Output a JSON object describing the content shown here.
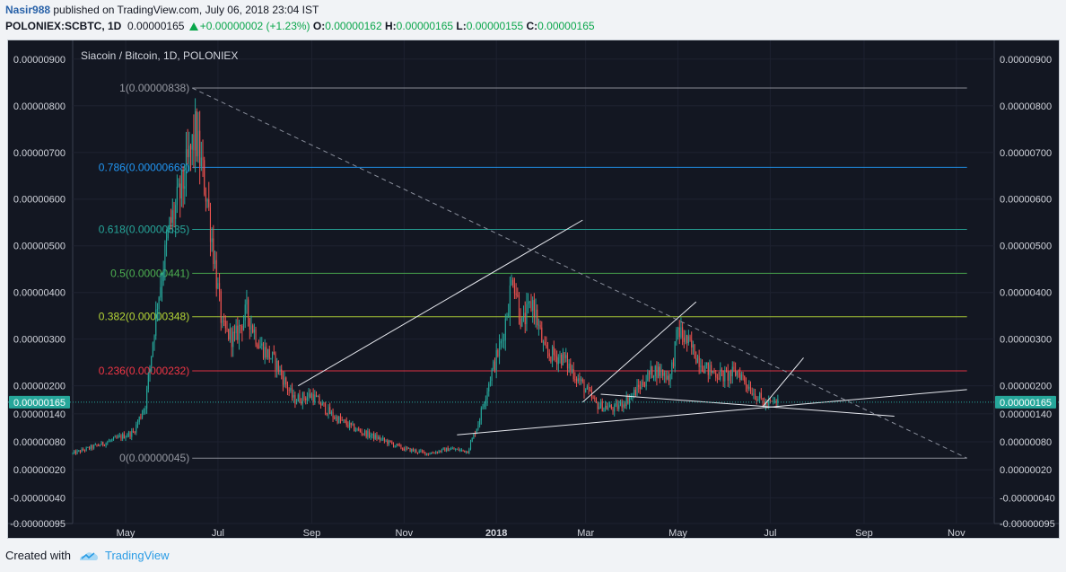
{
  "header": {
    "author": "Nasir988",
    "published_text": " published on TradingView.com, July 06, 2018 23:04 IST",
    "symbol": "POLONIEX:SCBTC, 1D",
    "last": "0.00000165",
    "change": "+0.00000002 (+1.23%)",
    "open_label": "O:",
    "open": "0.00000162",
    "high_label": "H:",
    "high": "0.00000165",
    "low_label": "L:",
    "low": "0.00000155",
    "close_label": "C:",
    "close": "0.00000165"
  },
  "footer": {
    "created_with": "Created with",
    "brand": "TradingView"
  },
  "colors": {
    "background": "#131722",
    "up": "#26a69a",
    "down": "#ef5350",
    "price_line": "#26a69a",
    "accent": "#2a9ce5"
  },
  "chart_data": {
    "type": "candlestick",
    "title": "Siacoin / Bitcoin, 1D, POLONIEX",
    "current_price": 1.65e-06,
    "current_price_label": "0.00000165",
    "y_range": [
      -9.5e-07,
      9.4e-06
    ],
    "x_range": [
      "2017-03-27",
      "2018-11-26"
    ],
    "x_ticks": [
      {
        "label": "May",
        "date": "2017-05-01"
      },
      {
        "label": "Jul",
        "date": "2017-07-01"
      },
      {
        "label": "Sep",
        "date": "2017-09-01"
      },
      {
        "label": "Nov",
        "date": "2017-11-01"
      },
      {
        "label": "2018",
        "date": "2018-01-01"
      },
      {
        "label": "Mar",
        "date": "2018-03-01"
      },
      {
        "label": "May",
        "date": "2018-05-01"
      },
      {
        "label": "Jul",
        "date": "2018-07-01"
      },
      {
        "label": "Sep",
        "date": "2018-09-01"
      },
      {
        "label": "Nov",
        "date": "2018-11-01"
      }
    ],
    "y_ticks": [
      {
        "label": "0.00000900",
        "value": 9e-06
      },
      {
        "label": "0.00000800",
        "value": 8e-06
      },
      {
        "label": "0.00000700",
        "value": 7e-06
      },
      {
        "label": "0.00000600",
        "value": 6e-06
      },
      {
        "label": "0.00000500",
        "value": 5e-06
      },
      {
        "label": "0.00000400",
        "value": 4e-06
      },
      {
        "label": "0.00000300",
        "value": 3e-06
      },
      {
        "label": "0.00000200",
        "value": 2e-06
      },
      {
        "label": "0.00000140",
        "value": 1.4e-06
      },
      {
        "label": "0.00000080",
        "value": 8e-07
      },
      {
        "label": "0.00000020",
        "value": 2e-07
      },
      {
        "label": "-0.00000040",
        "value": -4e-07
      },
      {
        "label": "-0.00000095",
        "value": -9.5e-07
      }
    ],
    "fib_levels": [
      {
        "label": "1(0.00000838)",
        "value": 8.38e-06,
        "color": "#9598a1"
      },
      {
        "label": "0.786(0.00000668)",
        "value": 6.68e-06,
        "color": "#2196f3"
      },
      {
        "label": "0.618(0.00000535)",
        "value": 5.35e-06,
        "color": "#26a69a"
      },
      {
        "label": "0.5(0.00000441)",
        "value": 4.41e-06,
        "color": "#4caf50"
      },
      {
        "label": "0.382(0.00000348)",
        "value": 3.48e-06,
        "color": "#b6d736"
      },
      {
        "label": "0.236(0.00000232)",
        "value": 2.32e-06,
        "color": "#f23645"
      },
      {
        "label": "0(0.00000045)",
        "value": 4.5e-07,
        "color": "#9598a1"
      }
    ],
    "trendlines": [
      {
        "name": "descending-dashed",
        "style": "dashed",
        "start": {
          "date": "2017-06-14",
          "value": 8.38e-06
        },
        "end": {
          "date": "2018-11-08",
          "value": 4.5e-07
        }
      },
      {
        "name": "channel-upper-2017",
        "style": "solid",
        "start": {
          "date": "2017-08-23",
          "value": 2e-06
        },
        "end": {
          "date": "2018-02-27",
          "value": 5.55e-06
        }
      },
      {
        "name": "channel-upper-2018",
        "style": "solid",
        "start": {
          "date": "2018-02-27",
          "value": 1.65e-06
        },
        "end": {
          "date": "2018-05-13",
          "value": 3.8e-06
        }
      },
      {
        "name": "breakout-line",
        "style": "solid",
        "start": {
          "date": "2018-06-26",
          "value": 1.55e-06
        },
        "end": {
          "date": "2018-07-23",
          "value": 2.6e-06
        }
      },
      {
        "name": "support-rising",
        "style": "solid",
        "start": {
          "date": "2017-12-06",
          "value": 9.5e-07
        },
        "end": {
          "date": "2018-11-08",
          "value": 1.92e-06
        }
      },
      {
        "name": "resistance-falling",
        "style": "solid",
        "start": {
          "date": "2018-03-11",
          "value": 1.82e-06
        },
        "end": {
          "date": "2018-09-21",
          "value": 1.35e-06
        }
      }
    ],
    "price_path": [
      {
        "date": "2017-03-27",
        "value": 5.5e-07
      },
      {
        "date": "2017-04-15",
        "value": 7.5e-07
      },
      {
        "date": "2017-05-06",
        "value": 1e-06
      },
      {
        "date": "2017-05-14",
        "value": 1.6e-06
      },
      {
        "date": "2017-05-22",
        "value": 3.8e-06
      },
      {
        "date": "2017-05-30",
        "value": 5.4e-06
      },
      {
        "date": "2017-06-07",
        "value": 6.2e-06
      },
      {
        "date": "2017-06-16",
        "value": 7.4e-06
      },
      {
        "date": "2017-06-24",
        "value": 6e-06
      },
      {
        "date": "2017-07-04",
        "value": 3.2e-06
      },
      {
        "date": "2017-07-12",
        "value": 3e-06
      },
      {
        "date": "2017-07-20",
        "value": 3.6e-06
      },
      {
        "date": "2017-07-28",
        "value": 2.9e-06
      },
      {
        "date": "2017-08-08",
        "value": 2.5e-06
      },
      {
        "date": "2017-08-20",
        "value": 1.7e-06
      },
      {
        "date": "2017-09-01",
        "value": 1.8e-06
      },
      {
        "date": "2017-09-15",
        "value": 1.35e-06
      },
      {
        "date": "2017-10-01",
        "value": 1.05e-06
      },
      {
        "date": "2017-10-17",
        "value": 8.5e-07
      },
      {
        "date": "2017-11-01",
        "value": 6.5e-07
      },
      {
        "date": "2017-11-17",
        "value": 5.5e-07
      },
      {
        "date": "2017-12-01",
        "value": 6.5e-07
      },
      {
        "date": "2017-12-13",
        "value": 6e-07
      },
      {
        "date": "2017-12-20",
        "value": 1.2e-06
      },
      {
        "date": "2017-12-28",
        "value": 2.2e-06
      },
      {
        "date": "2018-01-05",
        "value": 3e-06
      },
      {
        "date": "2018-01-12",
        "value": 4.4e-06
      },
      {
        "date": "2018-01-18",
        "value": 3.3e-06
      },
      {
        "date": "2018-01-25",
        "value": 3.8e-06
      },
      {
        "date": "2018-02-02",
        "value": 2.7e-06
      },
      {
        "date": "2018-02-14",
        "value": 2.6e-06
      },
      {
        "date": "2018-02-25",
        "value": 2.1e-06
      },
      {
        "date": "2018-03-08",
        "value": 1.6e-06
      },
      {
        "date": "2018-03-20",
        "value": 1.5e-06
      },
      {
        "date": "2018-04-01",
        "value": 1.8e-06
      },
      {
        "date": "2018-04-15",
        "value": 2.35e-06
      },
      {
        "date": "2018-04-26",
        "value": 2.2e-06
      },
      {
        "date": "2018-05-01",
        "value": 3.2e-06
      },
      {
        "date": "2018-05-10",
        "value": 2.8e-06
      },
      {
        "date": "2018-05-20",
        "value": 2.35e-06
      },
      {
        "date": "2018-06-01",
        "value": 2.2e-06
      },
      {
        "date": "2018-06-10",
        "value": 2.3e-06
      },
      {
        "date": "2018-06-20",
        "value": 1.85e-06
      },
      {
        "date": "2018-06-28",
        "value": 1.6e-06
      },
      {
        "date": "2018-07-06",
        "value": 1.65e-06
      }
    ],
    "grid": true,
    "y_axis_position": "both"
  }
}
